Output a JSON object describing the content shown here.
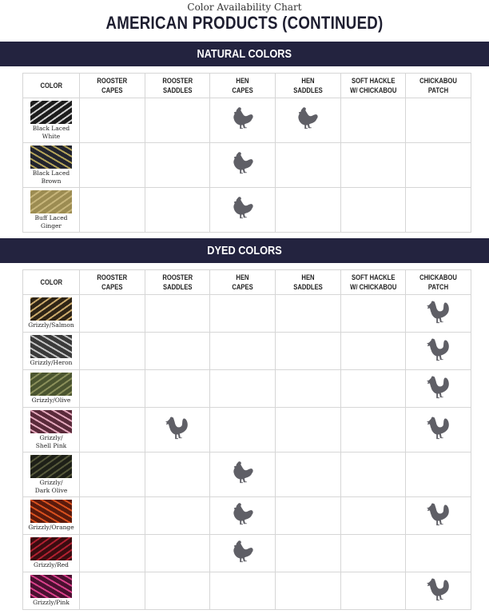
{
  "header": {
    "subtitle": "Color Availability Chart",
    "title": "AMERICAN PRODUCTS (CONTINUED)"
  },
  "columns": [
    "COLOR",
    "ROOSTER\nCAPES",
    "ROOSTER\nSADDLES",
    "HEN\nCAPES",
    "HEN\nSADDLES",
    "SOFT HACKLE\nW/ CHICKABOU",
    "CHICKABOU\nPATCH"
  ],
  "colors": {
    "banner": "#23233f",
    "icon": "#5f5f66"
  },
  "sections": [
    {
      "title": "NATURAL COLORS",
      "rows": [
        {
          "name": "Black Laced\nWhite",
          "swatch": [
            "#1c1c1c",
            "#cfcfcf"
          ],
          "availability": [
            "",
            "",
            "hen",
            "hen",
            "",
            ""
          ]
        },
        {
          "name": "Black Laced\nBrown",
          "swatch": [
            "#22242e",
            "#b3a35a"
          ],
          "availability": [
            "",
            "",
            "hen",
            "",
            "",
            ""
          ]
        },
        {
          "name": "Buff Laced\nGinger",
          "swatch": [
            "#9c8c52",
            "#c7b57a"
          ],
          "availability": [
            "",
            "",
            "hen",
            "",
            "",
            ""
          ]
        }
      ]
    },
    {
      "title": "DYED COLORS",
      "rows": [
        {
          "name": "Grizzly/Salmon",
          "swatch": [
            "#2e2416",
            "#c9a86a"
          ],
          "availability": [
            "",
            "",
            "",
            "",
            "",
            "rooster"
          ]
        },
        {
          "name": "Grizzly/Heron",
          "swatch": [
            "#3a3a3a",
            "#c4c4c4"
          ],
          "availability": [
            "",
            "",
            "",
            "",
            "",
            "rooster"
          ]
        },
        {
          "name": "Grizzly/Olive",
          "swatch": [
            "#4b5530",
            "#8a8f5a"
          ],
          "availability": [
            "",
            "",
            "",
            "",
            "",
            "rooster"
          ]
        },
        {
          "name": "Grizzly/\nShell Pink",
          "swatch": [
            "#5a2a3a",
            "#e3a6bb"
          ],
          "availability": [
            "",
            "rooster",
            "",
            "",
            "",
            "rooster"
          ]
        },
        {
          "name": "Grizzly/\nDark Olive",
          "swatch": [
            "#1e2018",
            "#55583a"
          ],
          "availability": [
            "",
            "",
            "hen",
            "",
            "",
            ""
          ]
        },
        {
          "name": "Grizzly/Orange",
          "swatch": [
            "#5a1a0c",
            "#d9501e"
          ],
          "availability": [
            "",
            "",
            "hen",
            "",
            "",
            "rooster"
          ]
        },
        {
          "name": "Grizzly/Red",
          "swatch": [
            "#3a0c10",
            "#b02030"
          ],
          "availability": [
            "",
            "",
            "hen",
            "",
            "",
            ""
          ]
        },
        {
          "name": "Grizzly/Pink",
          "swatch": [
            "#4a1030",
            "#d8408a"
          ],
          "availability": [
            "",
            "",
            "",
            "",
            "",
            "rooster"
          ]
        }
      ]
    }
  ]
}
